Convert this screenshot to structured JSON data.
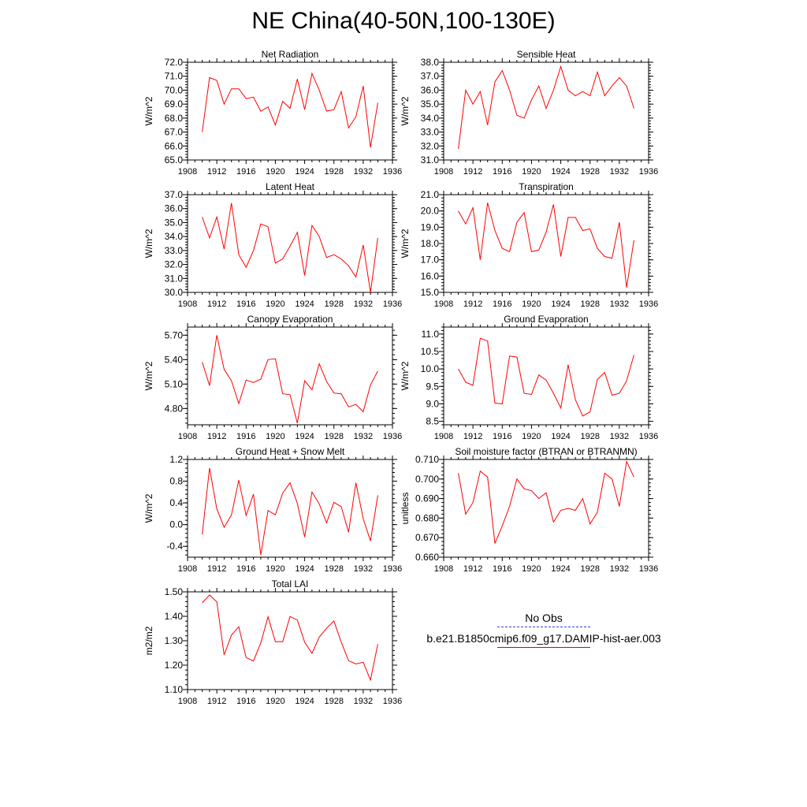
{
  "title": "NE China(40-50N,100-130E)",
  "colors": {
    "model_line": "#ff0000",
    "obs_line": "#3b3bd0",
    "axis": "#000000"
  },
  "legend": {
    "obs_label": "No Obs",
    "model_label": "b.e21.B1850cmip6.f09_g17.DAMIP-hist-aer.003"
  },
  "chart_data": [
    {
      "type": "line",
      "title": "Net Radiation",
      "ylabel": "W/m^2",
      "xlim": [
        1908,
        1936
      ],
      "xticks": [
        1908,
        1912,
        1916,
        1920,
        1924,
        1928,
        1932,
        1936
      ],
      "ylim": [
        65.0,
        72.0
      ],
      "yticks": [
        65.0,
        66.0,
        67.0,
        68.0,
        69.0,
        70.0,
        71.0,
        72.0
      ],
      "ydec": 1,
      "x": [
        1910,
        1911,
        1912,
        1913,
        1914,
        1915,
        1916,
        1917,
        1918,
        1919,
        1920,
        1921,
        1922,
        1923,
        1924,
        1925,
        1926,
        1927,
        1928,
        1929,
        1930,
        1931,
        1932,
        1933,
        1934
      ],
      "series": [
        {
          "values": [
            67.0,
            70.9,
            70.7,
            69.0,
            70.1,
            70.1,
            69.4,
            69.5,
            68.5,
            68.8,
            67.5,
            69.2,
            68.7,
            70.8,
            68.6,
            71.2,
            70.0,
            68.5,
            68.6,
            69.9,
            67.3,
            68.1,
            70.3,
            65.9,
            69.1
          ]
        }
      ]
    },
    {
      "type": "line",
      "title": "Sensible Heat",
      "ylabel": "W/m^2",
      "xlim": [
        1908,
        1936
      ],
      "xticks": [
        1908,
        1912,
        1916,
        1920,
        1924,
        1928,
        1932,
        1936
      ],
      "ylim": [
        31.0,
        38.0
      ],
      "yticks": [
        31.0,
        32.0,
        33.0,
        34.0,
        35.0,
        36.0,
        37.0,
        38.0
      ],
      "ydec": 1,
      "x": [
        1910,
        1911,
        1912,
        1913,
        1914,
        1915,
        1916,
        1917,
        1918,
        1919,
        1920,
        1921,
        1922,
        1923,
        1924,
        1925,
        1926,
        1927,
        1928,
        1929,
        1930,
        1931,
        1932,
        1933,
        1934
      ],
      "series": [
        {
          "values": [
            31.8,
            36.0,
            35.0,
            35.9,
            33.5,
            36.6,
            37.4,
            36.0,
            34.2,
            34.0,
            35.3,
            36.3,
            34.7,
            36.0,
            37.7,
            36.0,
            35.6,
            35.9,
            35.6,
            37.3,
            35.6,
            36.3,
            36.9,
            36.3,
            34.7
          ]
        }
      ]
    },
    {
      "type": "line",
      "title": "Latent Heat",
      "ylabel": "W/m^2",
      "xlim": [
        1908,
        1936
      ],
      "xticks": [
        1908,
        1912,
        1916,
        1920,
        1924,
        1928,
        1932,
        1936
      ],
      "ylim": [
        30.0,
        37.0
      ],
      "yticks": [
        30.0,
        31.0,
        32.0,
        33.0,
        34.0,
        35.0,
        36.0,
        37.0
      ],
      "ydec": 1,
      "x": [
        1910,
        1911,
        1912,
        1913,
        1914,
        1915,
        1916,
        1917,
        1918,
        1919,
        1920,
        1921,
        1922,
        1923,
        1924,
        1925,
        1926,
        1927,
        1928,
        1929,
        1930,
        1931,
        1932,
        1933,
        1934
      ],
      "series": [
        {
          "values": [
            35.4,
            33.9,
            35.4,
            33.1,
            36.4,
            32.7,
            31.8,
            33.0,
            34.9,
            34.7,
            32.1,
            32.4,
            33.3,
            34.3,
            31.2,
            34.8,
            34.0,
            32.5,
            32.7,
            32.4,
            31.9,
            31.1,
            33.4,
            30.0,
            33.9
          ]
        }
      ]
    },
    {
      "type": "line",
      "title": "Transpiration",
      "ylabel": "W/m^2",
      "xlim": [
        1908,
        1936
      ],
      "xticks": [
        1908,
        1912,
        1916,
        1920,
        1924,
        1928,
        1932,
        1936
      ],
      "ylim": [
        15.0,
        21.0
      ],
      "yticks": [
        15.0,
        16.0,
        17.0,
        18.0,
        19.0,
        20.0,
        21.0
      ],
      "ydec": 1,
      "x": [
        1910,
        1911,
        1912,
        1913,
        1914,
        1915,
        1916,
        1917,
        1918,
        1919,
        1920,
        1921,
        1922,
        1923,
        1924,
        1925,
        1926,
        1927,
        1928,
        1929,
        1930,
        1931,
        1932,
        1933,
        1934
      ],
      "series": [
        {
          "values": [
            20.0,
            19.2,
            20.2,
            17.0,
            20.5,
            18.8,
            17.7,
            17.5,
            19.3,
            19.9,
            17.5,
            17.6,
            18.7,
            20.4,
            17.2,
            19.6,
            19.6,
            18.8,
            18.9,
            17.7,
            17.2,
            17.1,
            19.3,
            15.3,
            18.2
          ]
        }
      ]
    },
    {
      "type": "line",
      "title": "Canopy Evaporation",
      "ylabel": "W/m^2",
      "xlim": [
        1908,
        1936
      ],
      "xticks": [
        1908,
        1912,
        1916,
        1920,
        1924,
        1928,
        1932,
        1936
      ],
      "ylim": [
        4.6,
        5.8
      ],
      "yticks": [
        4.8,
        5.1,
        5.4,
        5.7
      ],
      "ydec": 2,
      "x": [
        1910,
        1911,
        1912,
        1913,
        1914,
        1915,
        1916,
        1917,
        1918,
        1919,
        1920,
        1921,
        1922,
        1923,
        1924,
        1925,
        1926,
        1927,
        1928,
        1929,
        1930,
        1931,
        1932,
        1933,
        1934
      ],
      "series": [
        {
          "values": [
            5.37,
            5.08,
            5.7,
            5.28,
            5.14,
            4.86,
            5.15,
            5.12,
            5.16,
            5.4,
            5.41,
            4.98,
            4.97,
            4.62,
            5.14,
            5.03,
            5.35,
            5.13,
            4.99,
            4.98,
            4.82,
            4.85,
            4.76,
            5.09,
            5.26
          ]
        }
      ]
    },
    {
      "type": "line",
      "title": "Ground Evaporation",
      "ylabel": "W/m^2",
      "xlim": [
        1908,
        1936
      ],
      "xticks": [
        1908,
        1912,
        1916,
        1920,
        1924,
        1928,
        1932,
        1936
      ],
      "ylim": [
        8.4,
        11.2
      ],
      "yticks": [
        8.5,
        9.0,
        9.5,
        10.0,
        10.5,
        11.0
      ],
      "ydec": 1,
      "x": [
        1910,
        1911,
        1912,
        1913,
        1914,
        1915,
        1916,
        1917,
        1918,
        1919,
        1920,
        1921,
        1922,
        1923,
        1924,
        1925,
        1926,
        1927,
        1928,
        1929,
        1930,
        1931,
        1932,
        1933,
        1934
      ],
      "series": [
        {
          "values": [
            10.0,
            9.62,
            9.53,
            10.88,
            10.8,
            9.02,
            9.0,
            10.37,
            10.34,
            9.3,
            9.27,
            9.83,
            9.68,
            9.3,
            8.88,
            10.12,
            9.12,
            8.65,
            8.77,
            9.7,
            9.9,
            9.25,
            9.3,
            9.66,
            10.4
          ]
        }
      ]
    },
    {
      "type": "line",
      "title": "Ground Heat + Snow Melt",
      "ylabel": "W/m^2",
      "xlim": [
        1908,
        1936
      ],
      "xticks": [
        1908,
        1912,
        1916,
        1920,
        1924,
        1928,
        1932,
        1936
      ],
      "ylim": [
        -0.6,
        1.2
      ],
      "yticks": [
        -0.4,
        0.0,
        0.4,
        0.8,
        1.2
      ],
      "ydec": 1,
      "x": [
        1910,
        1911,
        1912,
        1913,
        1914,
        1915,
        1916,
        1917,
        1918,
        1919,
        1920,
        1921,
        1922,
        1923,
        1924,
        1925,
        1926,
        1927,
        1928,
        1929,
        1930,
        1931,
        1932,
        1933,
        1934
      ],
      "series": [
        {
          "values": [
            -0.18,
            1.04,
            0.29,
            -0.05,
            0.18,
            0.82,
            0.17,
            0.56,
            -0.56,
            0.26,
            0.18,
            0.58,
            0.77,
            0.39,
            -0.23,
            0.6,
            0.38,
            0.03,
            0.41,
            0.33,
            -0.14,
            0.77,
            0.11,
            -0.3,
            0.54
          ]
        }
      ]
    },
    {
      "type": "line",
      "title": "Soil moisture factor (BTRAN or BTRANMN)",
      "ylabel": "unitless",
      "xlim": [
        1908,
        1936
      ],
      "xticks": [
        1908,
        1912,
        1916,
        1920,
        1924,
        1928,
        1932,
        1936
      ],
      "ylim": [
        0.66,
        0.71
      ],
      "yticks": [
        0.66,
        0.67,
        0.68,
        0.69,
        0.7,
        0.71
      ],
      "ydec": 3,
      "x": [
        1910,
        1911,
        1912,
        1913,
        1914,
        1915,
        1916,
        1917,
        1918,
        1919,
        1920,
        1921,
        1922,
        1923,
        1924,
        1925,
        1926,
        1927,
        1928,
        1929,
        1930,
        1931,
        1932,
        1933,
        1934
      ],
      "series": [
        {
          "values": [
            0.703,
            0.682,
            0.688,
            0.704,
            0.701,
            0.667,
            0.676,
            0.686,
            0.7,
            0.695,
            0.694,
            0.69,
            0.693,
            0.678,
            0.684,
            0.685,
            0.684,
            0.69,
            0.677,
            0.683,
            0.703,
            0.7,
            0.686,
            0.709,
            0.701
          ]
        }
      ]
    },
    {
      "type": "line",
      "title": "Total LAI",
      "ylabel": "m2/m2",
      "xlim": [
        1908,
        1936
      ],
      "xticks": [
        1908,
        1912,
        1916,
        1920,
        1924,
        1928,
        1932,
        1936
      ],
      "ylim": [
        1.1,
        1.5
      ],
      "yticks": [
        1.1,
        1.2,
        1.3,
        1.4,
        1.5
      ],
      "ydec": 2,
      "x": [
        1910,
        1911,
        1912,
        1913,
        1914,
        1915,
        1916,
        1917,
        1918,
        1919,
        1920,
        1921,
        1922,
        1923,
        1924,
        1925,
        1926,
        1927,
        1928,
        1929,
        1930,
        1931,
        1932,
        1933,
        1934
      ],
      "series": [
        {
          "values": [
            1.455,
            1.487,
            1.459,
            1.242,
            1.323,
            1.357,
            1.231,
            1.217,
            1.291,
            1.398,
            1.296,
            1.296,
            1.399,
            1.385,
            1.294,
            1.248,
            1.315,
            1.351,
            1.381,
            1.294,
            1.218,
            1.205,
            1.212,
            1.139,
            1.286
          ]
        }
      ]
    }
  ]
}
